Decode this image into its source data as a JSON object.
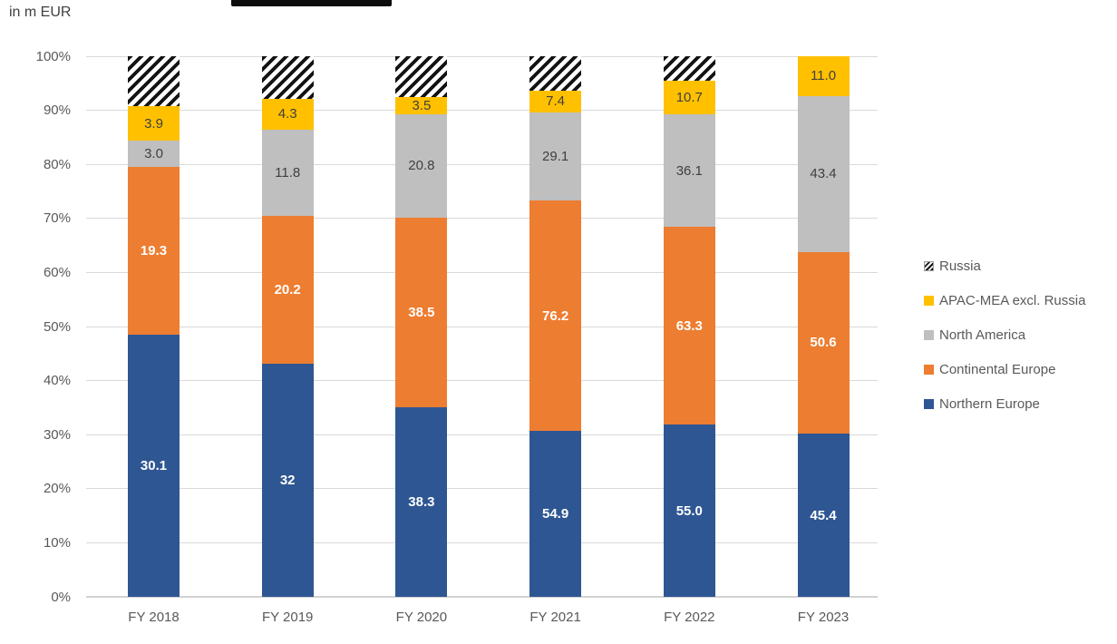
{
  "header": {
    "unit_label": "in m EUR",
    "title_redacted": true
  },
  "colors": {
    "northern_europe": "#2E5693",
    "continental_europe": "#ED7D31",
    "north_america": "#BFBFBF",
    "apac_mea": "#FFC000",
    "russia_fg": "#141414",
    "russia_bg": "#FFFFFF",
    "axis_text": "#595959",
    "dark_label": "#404040",
    "gridline": "#D9D9D9",
    "redaction_bar": "#0D0D0D"
  },
  "chart_data": {
    "type": "bar",
    "variant": "100-percent-stacked-column",
    "title": "",
    "title_redacted": true,
    "unit": "in m EUR",
    "categories": [
      "FY 2018",
      "FY 2019",
      "FY 2020",
      "FY 2021",
      "FY 2022",
      "FY 2023"
    ],
    "series": [
      {
        "name": "Northern Europe",
        "color_key": "northern_europe",
        "label_style": "light",
        "values": [
          30.1,
          32,
          38.3,
          54.9,
          55.0,
          45.4
        ],
        "labels": [
          "30.1",
          "32",
          "38.3",
          "54.9",
          "55.0",
          "45.4"
        ],
        "share_pct": [
          48.5,
          43.2,
          35.0,
          30.7,
          31.8,
          30.2
        ]
      },
      {
        "name": "Continental Europe",
        "color_key": "continental_europe",
        "label_style": "light",
        "values": [
          19.3,
          20.2,
          38.5,
          76.2,
          63.3,
          50.6
        ],
        "labels": [
          "19.3",
          "20.2",
          "38.5",
          "76.2",
          "63.3",
          "50.6"
        ],
        "share_pct": [
          31.1,
          27.3,
          35.2,
          42.6,
          36.6,
          33.6
        ]
      },
      {
        "name": "North America",
        "color_key": "north_america",
        "label_style": "dark",
        "values": [
          3.0,
          11.8,
          20.8,
          29.1,
          36.1,
          43.4
        ],
        "labels": [
          "3.0",
          "11.8",
          "20.8",
          "29.1",
          "36.1",
          "43.4"
        ],
        "share_pct": [
          4.8,
          15.9,
          19.0,
          16.3,
          20.9,
          28.9
        ]
      },
      {
        "name": "APAC-MEA excl. Russia",
        "color_key": "apac_mea",
        "label_style": "dark",
        "values": [
          3.9,
          4.3,
          3.5,
          7.4,
          10.7,
          11.0
        ],
        "labels": [
          "3.9",
          "4.3",
          "3.5",
          "7.4",
          "10.7",
          "11.0"
        ],
        "share_pct": [
          6.3,
          5.8,
          3.2,
          4.1,
          6.2,
          7.3
        ]
      },
      {
        "name": "Russia",
        "color_key": "russia",
        "pattern": "diagonal-hatch",
        "label_style": "none",
        "values": [
          null,
          null,
          null,
          null,
          null,
          null
        ],
        "labels": [
          null,
          null,
          null,
          null,
          null,
          null
        ],
        "share_pct": [
          9.3,
          7.8,
          7.6,
          6.3,
          4.5,
          0
        ]
      }
    ],
    "y_axis": {
      "ticks": [
        "0%",
        "10%",
        "20%",
        "30%",
        "40%",
        "50%",
        "60%",
        "70%",
        "80%",
        "90%",
        "100%"
      ],
      "range": [
        0,
        100
      ],
      "gridlines": true
    },
    "legend": {
      "position": "right",
      "entries": [
        {
          "label": "Russia",
          "key": "russia"
        },
        {
          "label": "APAC-MEA excl. Russia",
          "key": "apac_mea"
        },
        {
          "label": "North America",
          "key": "north_america"
        },
        {
          "label": "Continental Europe",
          "key": "continental_europe"
        },
        {
          "label": "Northern Europe",
          "key": "northern_europe"
        }
      ]
    }
  }
}
